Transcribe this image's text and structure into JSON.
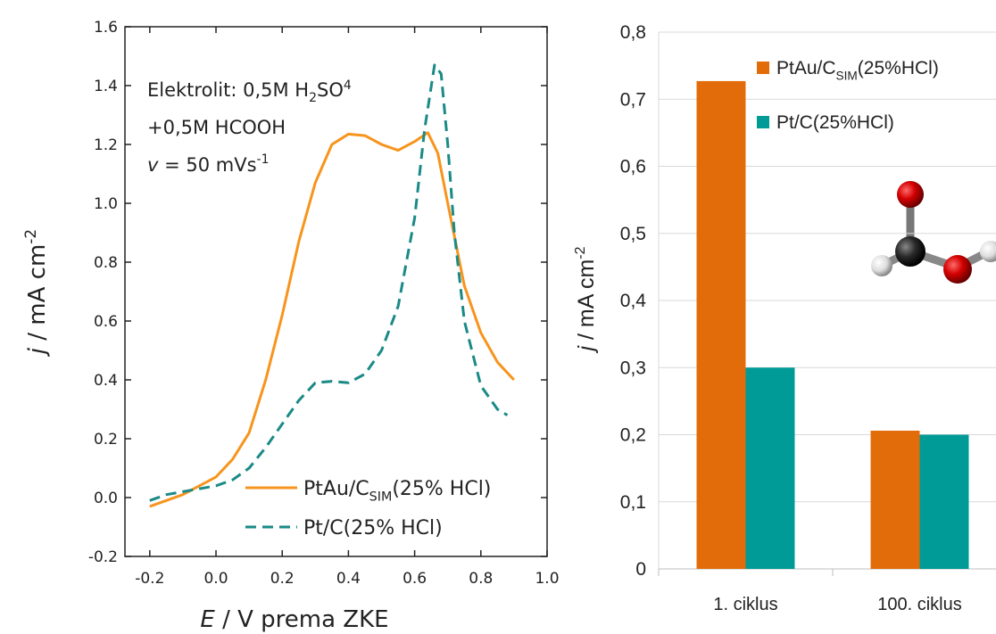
{
  "chart_data": [
    {
      "type": "line",
      "xlabel": [
        "E",
        " / V prema ZKE"
      ],
      "ylabel": [
        "j",
        " / mA cm",
        "-2"
      ],
      "annotations": [
        [
          "Elektrolit: 0,5M H",
          "2",
          "SO",
          "4"
        ],
        [
          "+0,5M HCOOH"
        ],
        [
          "v",
          " = 50 mVs",
          "-1"
        ]
      ],
      "xlim": [
        -0.275,
        1.0
      ],
      "ylim": [
        -0.2,
        1.6
      ],
      "xticks": [
        -0.2,
        {
          "value": 0,
          "label": "0.0"
        },
        0.2,
        0.4,
        0.6,
        0.8,
        {
          "value": 1,
          "label": "1.0"
        }
      ],
      "yticks": [
        -0.2,
        {
          "value": 0,
          "label": "0.0"
        },
        0.2,
        0.4,
        0.6,
        0.8,
        {
          "value": 1,
          "label": "1.0"
        },
        1.2,
        1.4,
        1.6
      ],
      "series": [
        {
          "name": [
            "PtAu/C",
            "SIM",
            "(25% HCl)"
          ],
          "color": "#f7941d",
          "line_style": "solid",
          "x": [
            -0.2,
            -0.1,
            0.0,
            0.05,
            0.1,
            0.15,
            0.2,
            0.25,
            0.3,
            0.35,
            0.4,
            0.45,
            0.5,
            0.55,
            0.6,
            0.64,
            0.67,
            0.7,
            0.75,
            0.8,
            0.85,
            0.9
          ],
          "values": [
            -0.03,
            0.01,
            0.07,
            0.13,
            0.22,
            0.4,
            0.62,
            0.87,
            1.07,
            1.2,
            1.235,
            1.23,
            1.2,
            1.18,
            1.21,
            1.24,
            1.17,
            1.0,
            0.72,
            0.56,
            0.46,
            0.4
          ]
        },
        {
          "name": "Pt/C(25% HCl)",
          "color": "#1a8a86",
          "line_style": "dashed",
          "x": [
            -0.2,
            -0.15,
            -0.1,
            -0.05,
            0.0,
            0.05,
            0.1,
            0.15,
            0.2,
            0.25,
            0.3,
            0.35,
            0.4,
            0.45,
            0.5,
            0.55,
            0.6,
            0.63,
            0.66,
            0.68,
            0.7,
            0.72,
            0.75,
            0.8,
            0.85,
            0.88
          ],
          "values": [
            -0.01,
            0.01,
            0.02,
            0.03,
            0.04,
            0.06,
            0.1,
            0.17,
            0.25,
            0.33,
            0.39,
            0.395,
            0.39,
            0.42,
            0.5,
            0.65,
            0.95,
            1.25,
            1.47,
            1.44,
            1.2,
            0.9,
            0.6,
            0.38,
            0.3,
            0.28
          ]
        }
      ]
    },
    {
      "type": "bar",
      "ylabel": [
        "j",
        " / mA cm",
        "-2"
      ],
      "categories": [
        "1. ciklus",
        "100. ciklus"
      ],
      "ylim": [
        0,
        0.8
      ],
      "yticks": [
        0,
        {
          "value": 0.1,
          "label": "0,1"
        },
        {
          "value": 0.2,
          "label": "0,2"
        },
        {
          "value": 0.3,
          "label": "0,3"
        },
        {
          "value": 0.4,
          "label": "0,4"
        },
        {
          "value": 0.5,
          "label": "0,5"
        },
        {
          "value": 0.6,
          "label": "0,6"
        },
        {
          "value": 0.7,
          "label": "0,7"
        },
        {
          "value": 0.8,
          "label": "0,8"
        }
      ],
      "grid": true,
      "series": [
        {
          "name": [
            "PtAu/C",
            "SIM",
            "(25%HCl)"
          ],
          "color": "#e36c0a",
          "values": [
            0.727,
            0.206
          ]
        },
        {
          "name": "Pt/C(25%HCl)",
          "color": "#009b96",
          "values": [
            0.3,
            0.2
          ]
        }
      ]
    }
  ]
}
